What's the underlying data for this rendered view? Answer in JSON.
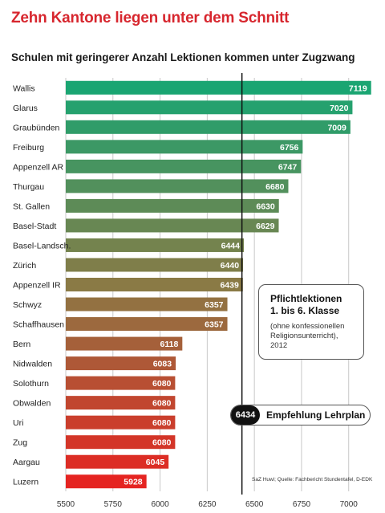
{
  "chart_data": {
    "type": "bar",
    "orientation": "horizontal",
    "title": "Zehn Kantone liegen unter dem Schnitt",
    "subtitle": "Schulen mit geringerer Anzahl Lektionen kommen unter Zugzwang",
    "categories": [
      "Wallis",
      "Glarus",
      "Graubünden",
      "Freiburg",
      "Appenzell AR",
      "Thurgau",
      "St. Gallen",
      "Basel-Stadt",
      "Basel-Landsch.",
      "Zürich",
      "Appenzell IR",
      "Schwyz",
      "Schaffhausen",
      "Bern",
      "Nidwalden",
      "Solothurn",
      "Obwalden",
      "Uri",
      "Zug",
      "Aargau",
      "Luzern"
    ],
    "values": [
      7119,
      7020,
      7009,
      6756,
      6747,
      6680,
      6630,
      6629,
      6444,
      6440,
      6439,
      6357,
      6357,
      6118,
      6083,
      6080,
      6080,
      6080,
      6080,
      6045,
      5928
    ],
    "xlim": [
      5500,
      7150
    ],
    "xticks": [
      "5500",
      "5750",
      "6000",
      "6250",
      "6500",
      "6750",
      "7000"
    ],
    "grid": true,
    "reference_line": {
      "value": 6434,
      "label": "Empfehlung Lehrplan",
      "value_label": "6434"
    },
    "annotation": {
      "title_line1": "Pflichtlektionen",
      "title_line2": "1. bis 6. Klasse",
      "note_line1": "(ohne konfessionellen",
      "note_line2": "Religionsunterricht), 2012"
    },
    "source": "SaZ Huwi; Quelle: Fachbericht Stundentafel, D-EDK",
    "colors": {
      "top": "#1aa572",
      "middle": "#8a7a45",
      "bottom": "#e52421",
      "grid": "#c8c8c8",
      "reference": "#111111"
    }
  }
}
